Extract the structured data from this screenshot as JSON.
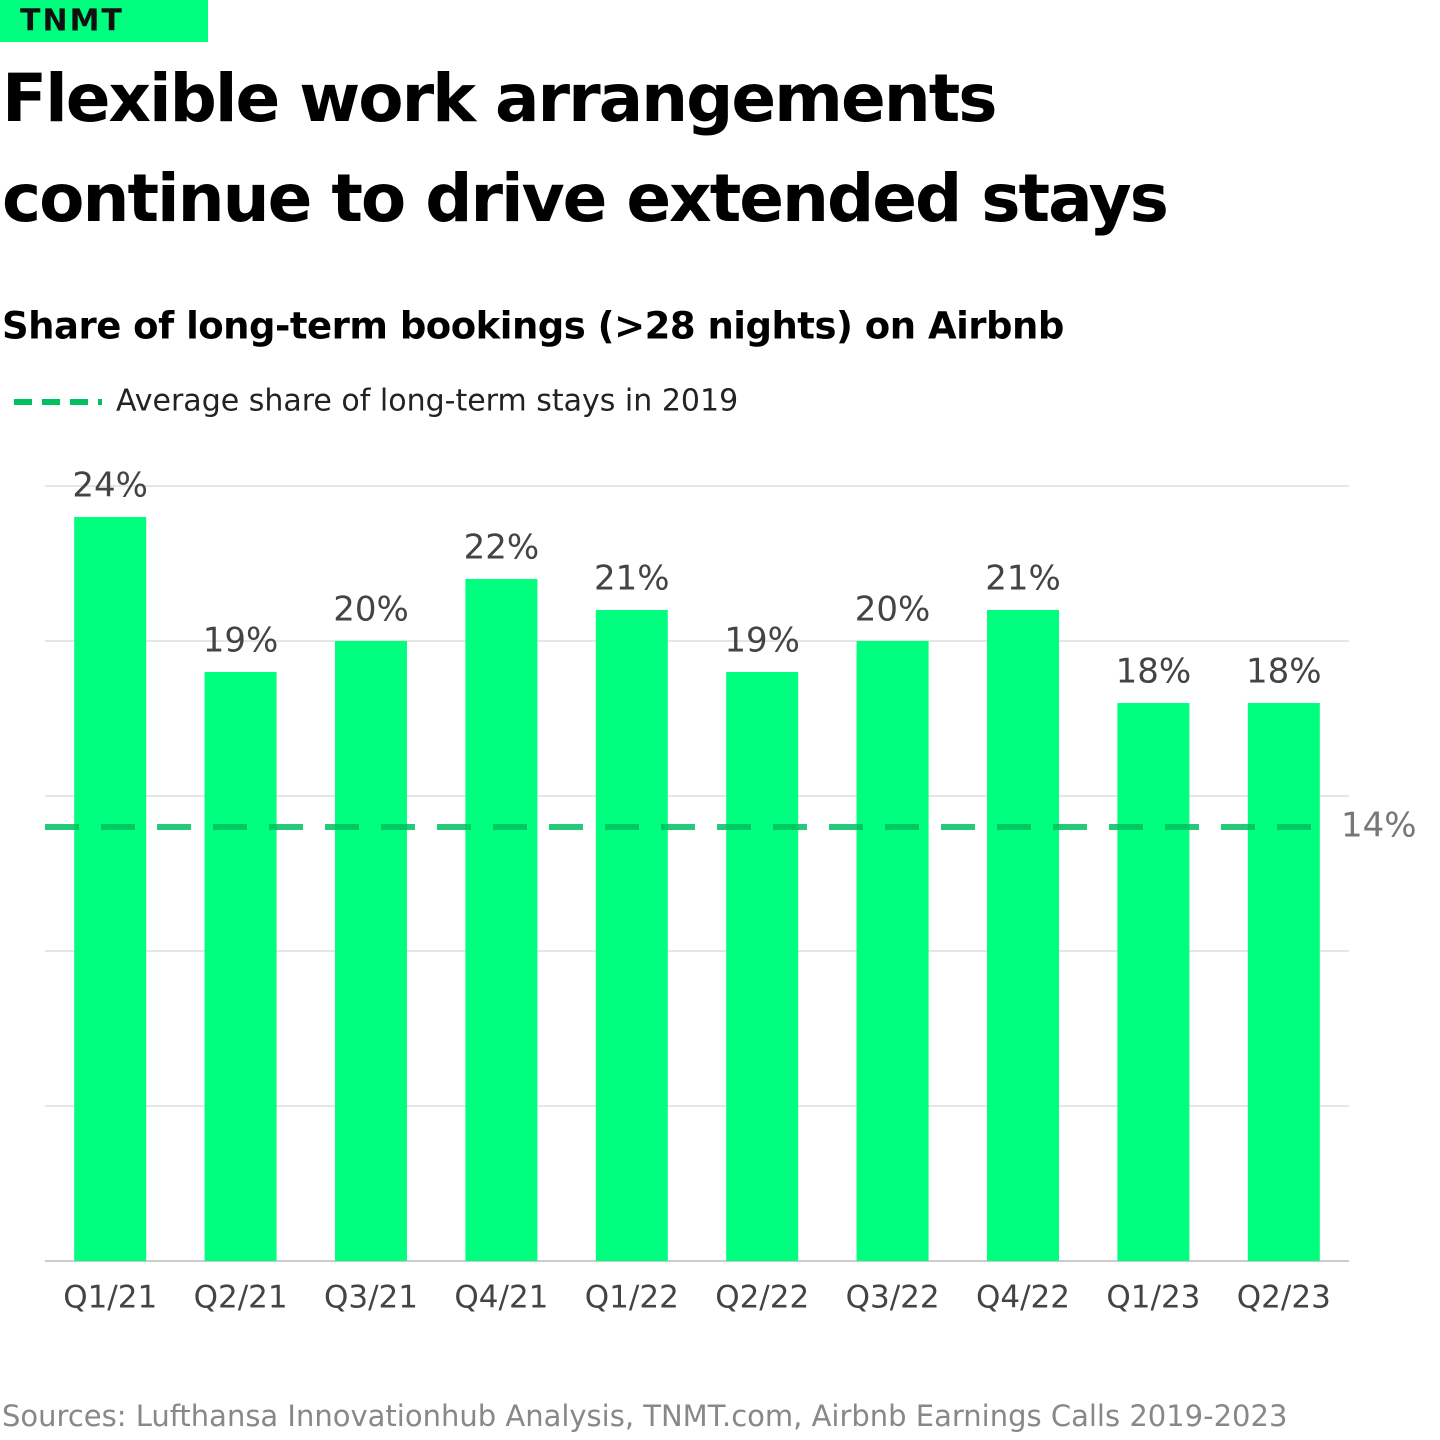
{
  "brand": "TNMT",
  "chart_data": {
    "type": "bar",
    "title": "Flexible work arrangements continue to drive extended stays",
    "title_lines": [
      "Flexible work arrangements",
      "continue to drive extended stays"
    ],
    "subtitle": "Share of long-term bookings (>28 nights) on Airbnb",
    "categories": [
      "Q1/21",
      "Q2/21",
      "Q3/21",
      "Q4/21",
      "Q1/22",
      "Q2/22",
      "Q3/22",
      "Q4/22",
      "Q1/23",
      "Q2/23"
    ],
    "values": [
      24,
      19,
      20,
      22,
      21,
      19,
      20,
      21,
      18,
      18
    ],
    "value_labels": [
      "24%",
      "19%",
      "20%",
      "22%",
      "21%",
      "19%",
      "20%",
      "21%",
      "18%",
      "18%"
    ],
    "color": "#00ff7f",
    "ylim": [
      0,
      25
    ],
    "yticks": [
      0,
      5,
      10,
      15,
      20,
      25
    ],
    "grid": true,
    "reference_line": {
      "name": "Average share of long-term stays in 2019",
      "value": 14,
      "label": "14%",
      "color": "#00c060"
    },
    "source": "Sources: Lufthansa Innovationhub Analysis, TNMT.com, Airbnb Earnings Calls 2019-2023"
  }
}
